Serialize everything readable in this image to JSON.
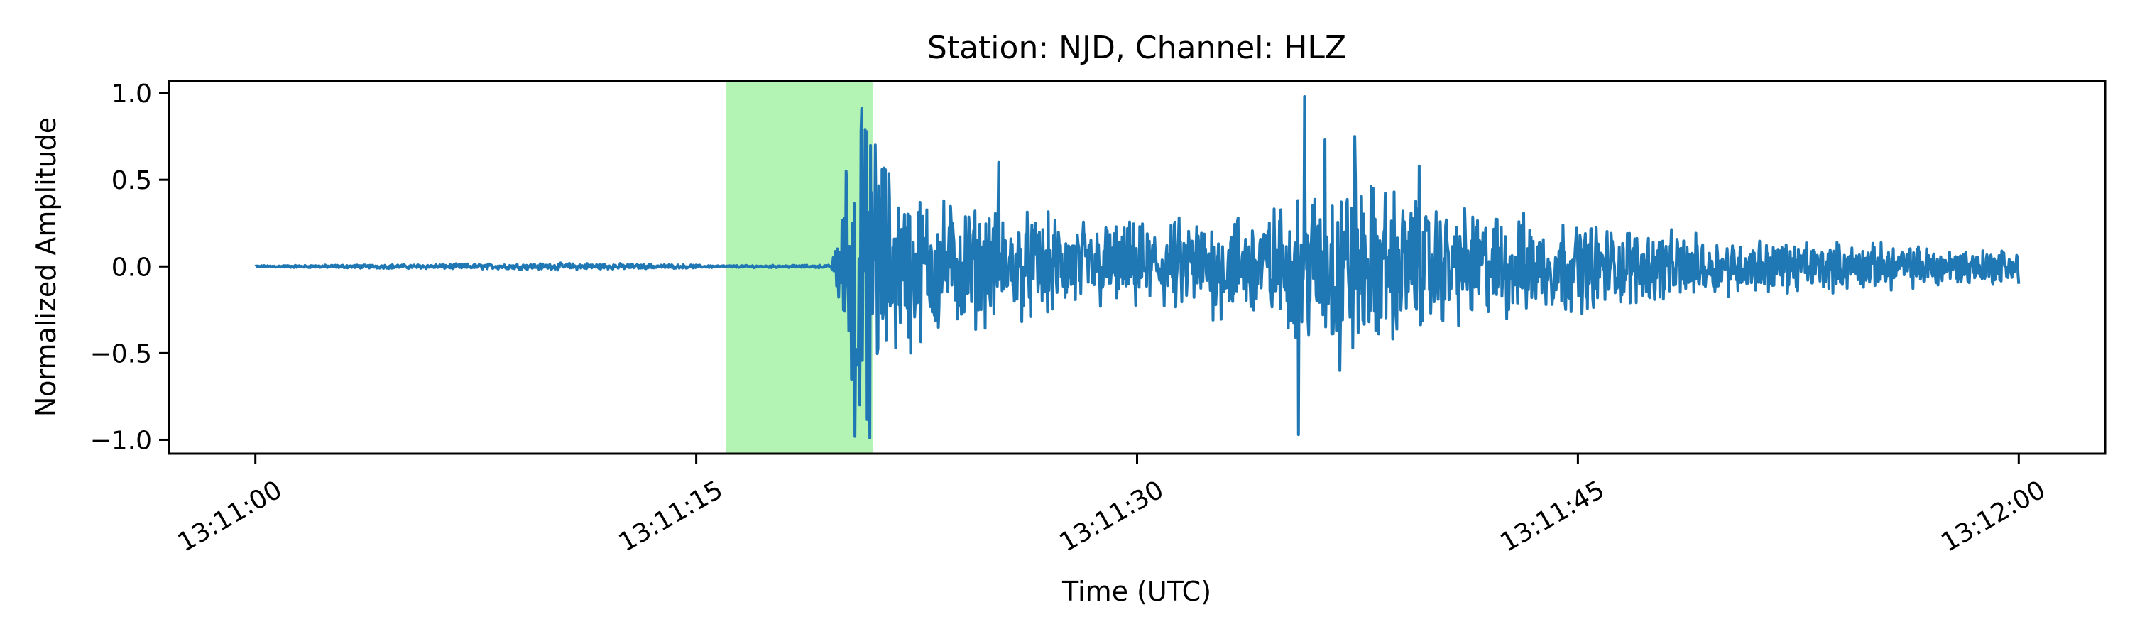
{
  "chart_data": {
    "type": "line",
    "title": "Station: NJD, Channel: HLZ",
    "xlabel": "Time (UTC)",
    "ylabel": "Normalized Amplitude",
    "x_range_seconds": [
      0,
      60
    ],
    "xlim_seconds": [
      -2.94,
      62.94
    ],
    "ylim": [
      -1.08,
      1.07
    ],
    "x_ticks": [
      {
        "t": 0,
        "label": "13:11:00"
      },
      {
        "t": 15,
        "label": "13:11:15"
      },
      {
        "t": 30,
        "label": "13:11:30"
      },
      {
        "t": 45,
        "label": "13:11:45"
      },
      {
        "t": 60,
        "label": "13:12:00"
      }
    ],
    "y_ticks": [
      {
        "v": 1.0,
        "label": "1.0"
      },
      {
        "v": 0.5,
        "label": "0.5"
      },
      {
        "v": 0.0,
        "label": "0.0"
      },
      {
        "v": -0.5,
        "label": "−0.5"
      },
      {
        "v": -1.0,
        "label": "−1.0"
      }
    ],
    "highlight_window_seconds": [
      16.0,
      21.0
    ],
    "highlight_color": "#b3f3b3",
    "line_color": "#1f77b4",
    "grid": false,
    "series": [
      {
        "envelope": [
          {
            "t": 0,
            "amp": 0.005
          },
          {
            "t": 5,
            "amp": 0.012
          },
          {
            "t": 11,
            "amp": 0.02
          },
          {
            "t": 16,
            "amp": 0.006
          },
          {
            "t": 19.6,
            "amp": 0.008
          },
          {
            "t": 19.8,
            "amp": 0.2
          },
          {
            "t": 20.5,
            "amp": 0.95
          },
          {
            "t": 22,
            "amp": 0.45
          },
          {
            "t": 25,
            "amp": 0.32
          },
          {
            "t": 30,
            "amp": 0.24
          },
          {
            "t": 35,
            "amp": 0.35
          },
          {
            "t": 37,
            "amp": 0.55
          },
          {
            "t": 40,
            "amp": 0.35
          },
          {
            "t": 50,
            "amp": 0.16
          },
          {
            "t": 60,
            "amp": 0.1
          }
        ],
        "peaks": [
          {
            "t": 20.1,
            "v": 0.55
          },
          {
            "t": 20.4,
            "v": -0.98
          },
          {
            "t": 20.6,
            "v": 0.78
          },
          {
            "t": 20.9,
            "v": -0.99
          },
          {
            "t": 21.1,
            "v": 0.7
          },
          {
            "t": 22.3,
            "v": -0.5
          },
          {
            "t": 25.3,
            "v": 0.6
          },
          {
            "t": 35.5,
            "v": -0.97
          },
          {
            "t": 35.7,
            "v": 0.98
          },
          {
            "t": 36.4,
            "v": 0.73
          },
          {
            "t": 36.9,
            "v": -0.6
          },
          {
            "t": 37.4,
            "v": 0.75
          },
          {
            "t": 39.6,
            "v": 0.58
          },
          {
            "t": 60,
            "v": -0.1
          }
        ]
      }
    ]
  }
}
